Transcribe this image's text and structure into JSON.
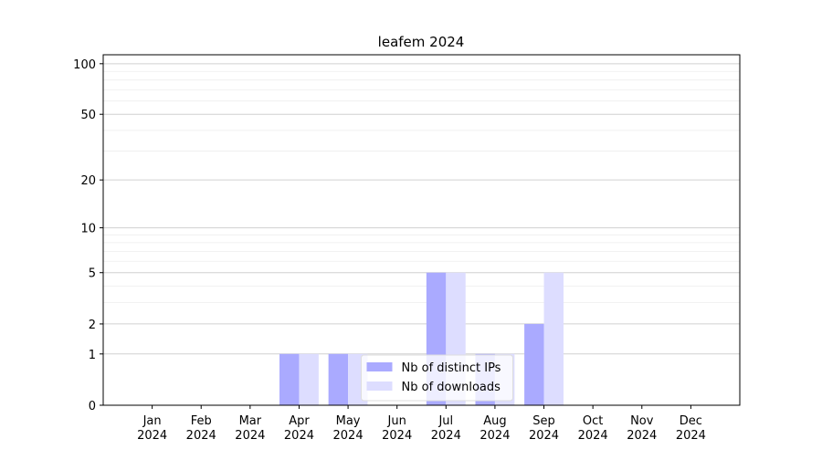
{
  "chart_data": {
    "type": "bar",
    "title": "leafem 2024",
    "categories": [
      [
        "Jan",
        "2024"
      ],
      [
        "Feb",
        "2024"
      ],
      [
        "Mar",
        "2024"
      ],
      [
        "Apr",
        "2024"
      ],
      [
        "May",
        "2024"
      ],
      [
        "Jun",
        "2024"
      ],
      [
        "Jul",
        "2024"
      ],
      [
        "Aug",
        "2024"
      ],
      [
        "Sep",
        "2024"
      ],
      [
        "Oct",
        "2024"
      ],
      [
        "Nov",
        "2024"
      ],
      [
        "Dec",
        "2024"
      ]
    ],
    "series": [
      {
        "name": "Nb of distinct IPs",
        "color": "#aaaaff",
        "values": [
          0,
          0,
          0,
          1,
          1,
          0,
          5,
          1,
          2,
          0,
          0,
          0
        ]
      },
      {
        "name": "Nb of downloads",
        "color": "#ddddff",
        "values": [
          0,
          0,
          0,
          1,
          1,
          0,
          5,
          1,
          5,
          0,
          0,
          0
        ]
      }
    ],
    "yscale": "log1p",
    "ylim": [
      0,
      113
    ],
    "yticks": [
      0,
      1,
      2,
      5,
      10,
      20,
      50,
      100
    ],
    "yminorticks": [
      3,
      4,
      6,
      7,
      8,
      9,
      30,
      40,
      60,
      70,
      80,
      90
    ],
    "grid": true,
    "legend": "lower center"
  }
}
